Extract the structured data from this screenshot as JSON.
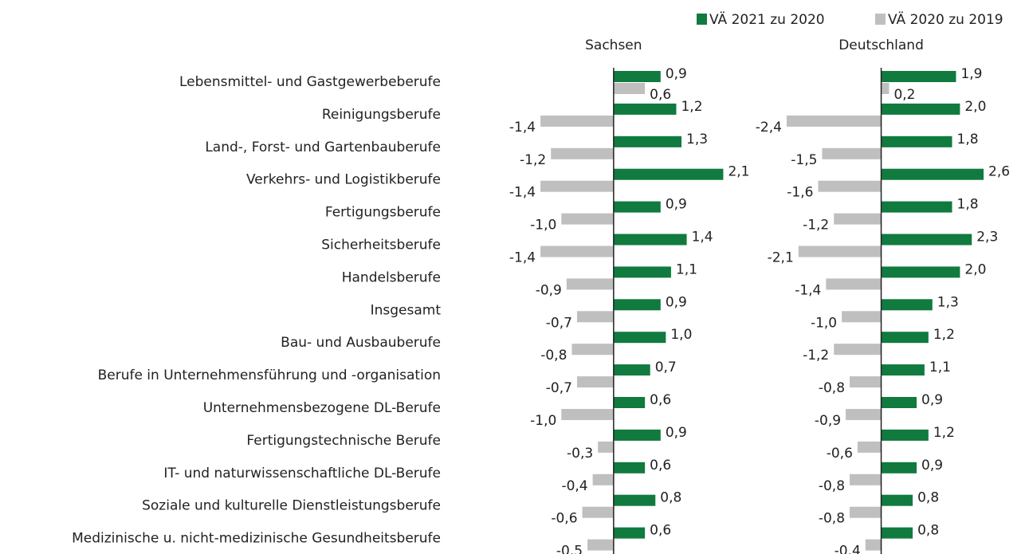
{
  "chart_data": [
    {
      "type": "bar",
      "orientation": "horizontal",
      "title": "Sachsen",
      "categories": [
        "Lebensmittel- und Gastgewerbeberufe",
        "Reinigungsberufe",
        "Land-, Forst- und Gartenbauberufe",
        "Verkehrs- und Logistikberufe",
        "Fertigungsberufe",
        "Sicherheitsberufe",
        "Handelsberufe",
        "Insgesamt",
        "Bau- und Ausbauberufe",
        "Berufe in Unternehmensführung und -organisation",
        "Unternehmensbezogene DL-Berufe",
        "Fertigungstechnische Berufe",
        "IT- und naturwissenschaftliche DL-Berufe",
        "Soziale und kulturelle Dienstleistungsberufe",
        "Medizinische u. nicht-medizinische Gesundheitsberufe"
      ],
      "xlim": [
        -1.6,
        2.2
      ],
      "series": [
        {
          "name": "VÄ 2021 zu 2020",
          "color": "#107a3f",
          "values": [
            0.9,
            1.2,
            1.3,
            2.1,
            0.9,
            1.4,
            1.1,
            0.9,
            1.0,
            0.7,
            0.6,
            0.9,
            0.6,
            0.8,
            0.6
          ],
          "value_labels": [
            "0,9",
            "1,2",
            "1,3",
            "2,1",
            "0,9",
            "1,4",
            "1,1",
            "0,9",
            "1,0",
            "0,7",
            "0,6",
            "0,9",
            "0,6",
            "0,8",
            "0,6"
          ]
        },
        {
          "name": "VÄ 2020 zu 2019",
          "color": "#bfbfbf",
          "values": [
            0.6,
            -1.4,
            -1.2,
            -1.4,
            -1.0,
            -1.4,
            -0.9,
            -0.7,
            -0.8,
            -0.7,
            -1.0,
            -0.3,
            -0.4,
            -0.6,
            -0.5
          ],
          "value_labels": [
            "0,6",
            "-1,4",
            "-1,2",
            "-1,4",
            "-1,0",
            "-1,4",
            "-0,9",
            "-0,7",
            "-0,8",
            "-0,7",
            "-1,0",
            "-0,3",
            "-0,4",
            "-0,6",
            "-0,5"
          ]
        }
      ]
    },
    {
      "type": "bar",
      "orientation": "horizontal",
      "title": "Deutschland",
      "xlim": [
        -2.5,
        2.7
      ],
      "series": [
        {
          "color": "#107a3f",
          "values": [
            1.9,
            2.0,
            1.8,
            2.6,
            1.8,
            2.3,
            2.0,
            1.3,
            1.2,
            1.1,
            0.9,
            1.2,
            0.9,
            0.8,
            0.8
          ],
          "value_labels": [
            "1,9",
            "2,0",
            "1,8",
            "2,6",
            "1,8",
            "2,3",
            "2,0",
            "1,3",
            "1,2",
            "1,1",
            "0,9",
            "1,2",
            "0,9",
            "0,8",
            "0,8"
          ]
        },
        {
          "color": "#bfbfbf",
          "values": [
            0.2,
            -2.4,
            -1.5,
            -1.6,
            -1.2,
            -2.1,
            -1.4,
            -1.0,
            -1.2,
            -0.8,
            -0.9,
            -0.6,
            -0.8,
            -0.8,
            -0.4
          ],
          "value_labels": [
            "0,2",
            "-2,4",
            "-1,5",
            "-1,6",
            "-1,2",
            "-2,1",
            "-1,4",
            "-1,0",
            "-1,2",
            "-0,8",
            "-0,9",
            "-0,6",
            "-0,8",
            "-0,8",
            "-0,4"
          ]
        }
      ]
    }
  ]
}
